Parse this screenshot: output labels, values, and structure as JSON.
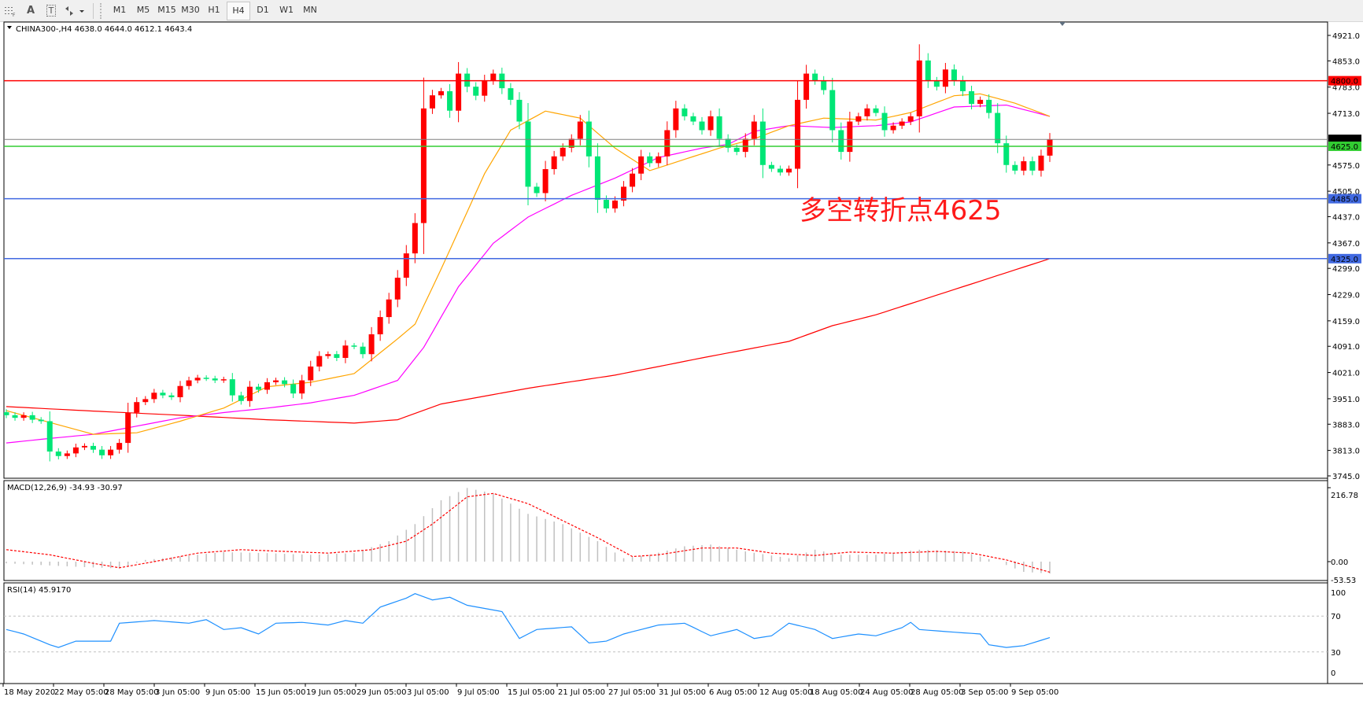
{
  "toolbar": {
    "icons": [
      "grid-icon",
      "text-icon",
      "text-label-icon",
      "arrows-icon"
    ],
    "text_icon": "A",
    "text_label_icon": "T",
    "timeframes": [
      "M1",
      "M5",
      "M15",
      "M30",
      "H1",
      "H4",
      "D1",
      "W1",
      "MN"
    ],
    "active_timeframe": "H4"
  },
  "chart": {
    "header": "CHINA300-,H4  4638.0 4644.0 4612.1 4643.4",
    "annotation": "多空转折点4625",
    "colors": {
      "bull": "#ff0000",
      "bear": "#00e676",
      "ma_fast": "#ffa500",
      "ma_mid": "#ff00ff",
      "ma_slow": "#ff0000",
      "rsi": "#1e90ff",
      "macd_hist": "#c0c0c0",
      "macd_signal": "#ff0000"
    },
    "price_ticks": [
      "4921.0",
      "4853.0",
      "4783.0",
      "4713.0",
      "4643.4",
      "4575.0",
      "4505.0",
      "4437.0",
      "4367.0",
      "4299.0",
      "4229.0",
      "4159.0",
      "4091.0",
      "4021.0",
      "3951.0",
      "3883.0",
      "3813.0",
      "3745.0"
    ],
    "hlines": [
      {
        "value": 4800.0,
        "label": "4800.0",
        "color": "#ff0000"
      },
      {
        "value": 4643.4,
        "label": "4643.4",
        "color": "#808080",
        "label_bg": "#000000"
      },
      {
        "value": 4625.0,
        "label": "4625.0",
        "color": "#32cd32"
      },
      {
        "value": 4485.0,
        "label": "4485.0",
        "color": "#4169e1"
      },
      {
        "value": 4325.0,
        "label": "4325.0",
        "color": "#4169e1"
      }
    ],
    "time_labels": [
      "18 May 2020",
      "22 May 05:00",
      "28 May 05:00",
      "3 Jun 05:00",
      "9 Jun 05:00",
      "15 Jun 05:00",
      "19 Jun 05:00",
      "29 Jun 05:00",
      "3 Jul 05:00",
      "9 Jul 05:00",
      "15 Jul 05:00",
      "21 Jul 05:00",
      "27 Jul 05:00",
      "31 Jul 05:00",
      "6 Aug 05:00",
      "12 Aug 05:00",
      "18 Aug 05:00",
      "24 Aug 05:00",
      "28 Aug 05:00",
      "3 Sep 05:00",
      "9 Sep 05:00"
    ]
  },
  "macd": {
    "label": "MACD(12,26,9) -34.93 -30.97",
    "ticks": [
      "216.78",
      "0.00",
      "-53.53"
    ]
  },
  "rsi": {
    "label": "RSI(14) 45.9170",
    "ticks": [
      "100",
      "70",
      "30",
      "0"
    ]
  },
  "chart_data": {
    "type": "candlestick",
    "symbol": "CHINA300-",
    "timeframe": "H4",
    "ylim": [
      3745.0,
      4921.0
    ],
    "closes": [
      3907,
      3900,
      3907,
      3895,
      3891,
      3810,
      3798,
      3805,
      3821,
      3825,
      3815,
      3800,
      3815,
      3833,
      3914,
      3942,
      3950,
      3967,
      3960,
      3955,
      3985,
      4000,
      4007,
      4005,
      4000,
      4003,
      3960,
      3945,
      3983,
      3975,
      3995,
      4000,
      3990,
      3965,
      4000,
      4037,
      4065,
      4070,
      4060,
      4093,
      4090,
      4070,
      4123,
      4169,
      4216,
      4274,
      4339,
      4420,
      4726,
      4761,
      4772,
      4720,
      4819,
      4784,
      4760,
      4800,
      4819,
      4780,
      4749,
      4691,
      4517,
      4500,
      4564,
      4598,
      4621,
      4645,
      4691,
      4598,
      4482,
      4459,
      4480,
      4517,
      4552,
      4598,
      4580,
      4598,
      4668,
      4726,
      4705,
      4691,
      4668,
      4705,
      4645,
      4621,
      4610,
      4645,
      4691,
      4575,
      4565,
      4555,
      4565,
      4749,
      4819,
      4800,
      4775,
      4668,
      4610,
      4691,
      4705,
      4726,
      4714,
      4668,
      4680,
      4691,
      4705,
      4854,
      4800,
      4784,
      4830,
      4800,
      4772,
      4738,
      4749,
      4714,
      4633,
      4575,
      4560,
      4585,
      4560,
      4600,
      4643.4
    ],
    "ma_fast": [
      [
        0,
        3919
      ],
      [
        10,
        3856
      ],
      [
        15,
        3860
      ],
      [
        20,
        3891
      ],
      [
        25,
        3926
      ],
      [
        30,
        3983
      ],
      [
        35,
        3995
      ],
      [
        40,
        4018
      ],
      [
        45,
        4111
      ],
      [
        47,
        4150
      ],
      [
        50,
        4297
      ],
      [
        55,
        4552
      ],
      [
        58,
        4668
      ],
      [
        62,
        4719
      ],
      [
        66,
        4700
      ],
      [
        70,
        4620
      ],
      [
        74,
        4560
      ],
      [
        78,
        4590
      ],
      [
        82,
        4620
      ],
      [
        86,
        4645
      ],
      [
        90,
        4680
      ],
      [
        94,
        4700
      ],
      [
        100,
        4695
      ],
      [
        104,
        4715
      ],
      [
        109,
        4760
      ],
      [
        112,
        4765
      ],
      [
        116,
        4740
      ],
      [
        120,
        4705
      ]
    ],
    "ma_mid": [
      [
        0,
        3833
      ],
      [
        5,
        3845
      ],
      [
        10,
        3856
      ],
      [
        20,
        3900
      ],
      [
        25,
        3914
      ],
      [
        30,
        3926
      ],
      [
        35,
        3940
      ],
      [
        40,
        3960
      ],
      [
        45,
        4000
      ],
      [
        48,
        4088
      ],
      [
        52,
        4250
      ],
      [
        56,
        4366
      ],
      [
        60,
        4436
      ],
      [
        65,
        4494
      ],
      [
        70,
        4540
      ],
      [
        75,
        4595
      ],
      [
        80,
        4620
      ],
      [
        83,
        4630
      ],
      [
        86,
        4665
      ],
      [
        90,
        4680
      ],
      [
        95,
        4675
      ],
      [
        100,
        4680
      ],
      [
        104,
        4690
      ],
      [
        109,
        4730
      ],
      [
        115,
        4735
      ],
      [
        120,
        4705
      ]
    ],
    "ma_slow": [
      [
        0,
        3930
      ],
      [
        10,
        3918
      ],
      [
        20,
        3907
      ],
      [
        30,
        3895
      ],
      [
        40,
        3886
      ],
      [
        45,
        3895
      ],
      [
        50,
        3937
      ],
      [
        60,
        3979
      ],
      [
        70,
        4014
      ],
      [
        80,
        4060
      ],
      [
        90,
        4104
      ],
      [
        95,
        4146
      ],
      [
        100,
        4175
      ],
      [
        110,
        4250
      ],
      [
        120,
        4325
      ]
    ],
    "macd_hist": [
      [
        0,
        -5
      ],
      [
        8,
        -15
      ],
      [
        13,
        -20
      ],
      [
        16,
        5
      ],
      [
        20,
        15
      ],
      [
        25,
        28
      ],
      [
        30,
        25
      ],
      [
        35,
        20
      ],
      [
        40,
        25
      ],
      [
        44,
        60
      ],
      [
        47,
        110
      ],
      [
        50,
        180
      ],
      [
        53,
        216
      ],
      [
        56,
        200
      ],
      [
        60,
        140
      ],
      [
        64,
        110
      ],
      [
        68,
        60
      ],
      [
        71,
        10
      ],
      [
        74,
        20
      ],
      [
        78,
        45
      ],
      [
        81,
        50
      ],
      [
        85,
        30
      ],
      [
        90,
        10
      ],
      [
        93,
        35
      ],
      [
        96,
        20
      ],
      [
        100,
        20
      ],
      [
        105,
        35
      ],
      [
        110,
        30
      ],
      [
        114,
        0
      ],
      [
        117,
        -30
      ],
      [
        120,
        -35
      ]
    ],
    "macd_signal": [
      [
        0,
        35
      ],
      [
        5,
        20
      ],
      [
        10,
        -5
      ],
      [
        13,
        -18
      ],
      [
        17,
        0
      ],
      [
        22,
        25
      ],
      [
        27,
        35
      ],
      [
        32,
        30
      ],
      [
        37,
        25
      ],
      [
        42,
        35
      ],
      [
        46,
        60
      ],
      [
        49,
        110
      ],
      [
        53,
        190
      ],
      [
        56,
        200
      ],
      [
        60,
        170
      ],
      [
        64,
        120
      ],
      [
        68,
        70
      ],
      [
        72,
        15
      ],
      [
        75,
        20
      ],
      [
        80,
        40
      ],
      [
        84,
        40
      ],
      [
        88,
        25
      ],
      [
        93,
        18
      ],
      [
        97,
        28
      ],
      [
        102,
        25
      ],
      [
        107,
        30
      ],
      [
        111,
        25
      ],
      [
        115,
        5
      ],
      [
        120,
        -31
      ]
    ],
    "macd_ylim": [
      -53.53,
      216.78
    ],
    "rsi_values": [
      [
        0,
        55
      ],
      [
        2,
        50
      ],
      [
        5,
        38
      ],
      [
        6,
        35
      ],
      [
        8,
        42
      ],
      [
        12,
        42
      ],
      [
        13,
        62
      ],
      [
        17,
        65
      ],
      [
        21,
        62
      ],
      [
        23,
        66
      ],
      [
        25,
        55
      ],
      [
        27,
        57
      ],
      [
        29,
        50
      ],
      [
        31,
        62
      ],
      [
        34,
        63
      ],
      [
        37,
        60
      ],
      [
        39,
        65
      ],
      [
        41,
        62
      ],
      [
        43,
        80
      ],
      [
        46,
        90
      ],
      [
        47,
        95
      ],
      [
        49,
        88
      ],
      [
        51,
        91
      ],
      [
        53,
        82
      ],
      [
        57,
        75
      ],
      [
        59,
        45
      ],
      [
        61,
        55
      ],
      [
        65,
        58
      ],
      [
        67,
        40
      ],
      [
        69,
        42
      ],
      [
        71,
        50
      ],
      [
        75,
        60
      ],
      [
        78,
        62
      ],
      [
        81,
        48
      ],
      [
        84,
        55
      ],
      [
        86,
        45
      ],
      [
        88,
        48
      ],
      [
        90,
        62
      ],
      [
        93,
        55
      ],
      [
        95,
        45
      ],
      [
        98,
        50
      ],
      [
        100,
        48
      ],
      [
        103,
        57
      ],
      [
        104,
        63
      ],
      [
        105,
        55
      ],
      [
        109,
        52
      ],
      [
        112,
        50
      ],
      [
        113,
        38
      ],
      [
        115,
        35
      ],
      [
        117,
        37
      ],
      [
        120,
        46
      ]
    ],
    "rsi_levels": [
      70,
      30
    ],
    "rsi_ylim": [
      0,
      100
    ]
  }
}
